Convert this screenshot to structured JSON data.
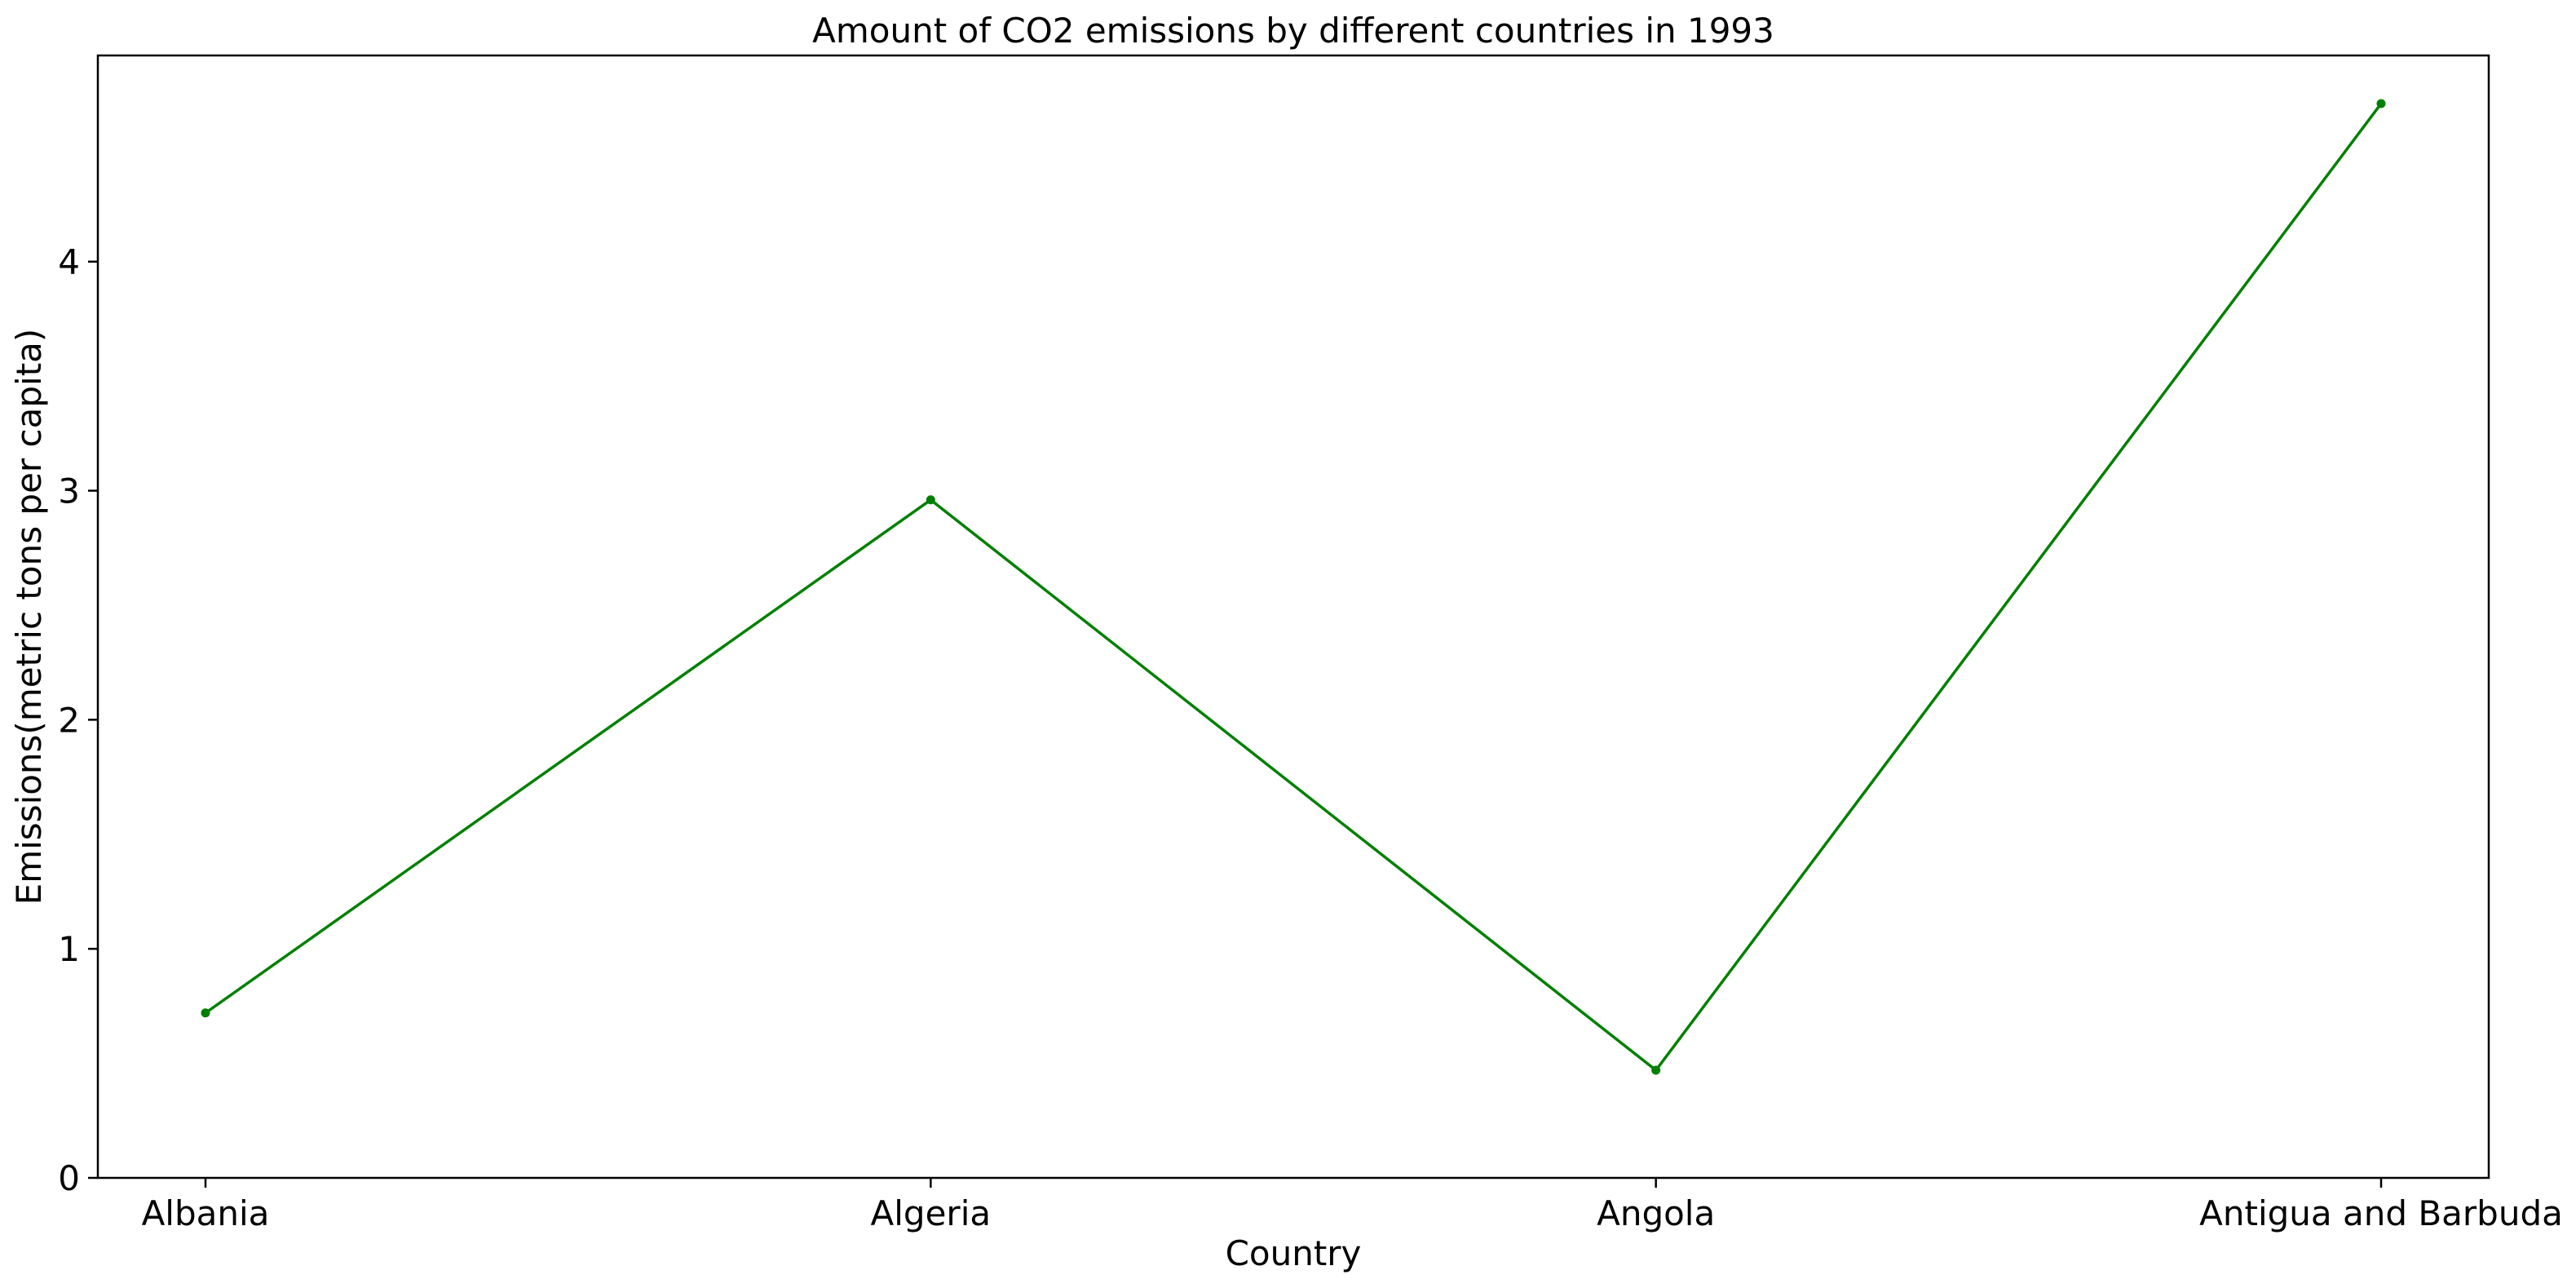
{
  "chart_data": {
    "type": "line",
    "title": "Amount of CO2 emissions by different countries in 1993",
    "xlabel": "Country",
    "ylabel": "Emissions(metric tons per capita)",
    "categories": [
      "Albania",
      "Algeria",
      "Angola",
      "Antigua and Barbuda"
    ],
    "series": [
      {
        "values": [
          0.72,
          2.96,
          0.47,
          4.69
        ],
        "color": "#008000",
        "marker": "dot"
      }
    ],
    "ylim": [
      0,
      4.9
    ],
    "yticks": [
      0,
      1,
      2,
      3,
      4
    ],
    "grid": false,
    "legend": "none"
  }
}
